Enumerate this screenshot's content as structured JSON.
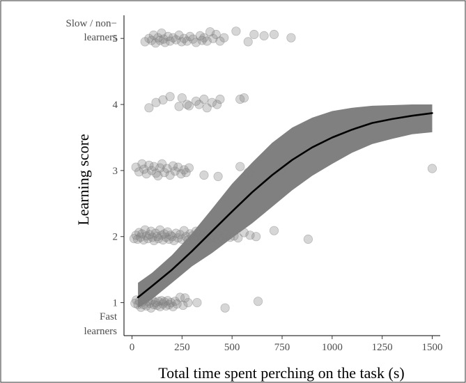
{
  "chart_data": {
    "type": "scatter",
    "xlabel": "Total time spent perching on the task (s)",
    "ylabel": "Learning score",
    "xlim": [
      -40,
      1540
    ],
    "ylim": [
      0.5,
      5.35
    ],
    "x_ticks": [
      0,
      250,
      500,
      750,
      1000,
      1250,
      1500
    ],
    "x_tick_labels": [
      "0",
      "250",
      "500",
      "750",
      "1000",
      "1250",
      "1500"
    ],
    "y_ticks": [
      1,
      2,
      3,
      4,
      5
    ],
    "y_tick_labels": [
      "1",
      "2",
      "3",
      "4",
      "5"
    ],
    "annotations": {
      "top_line1": "Slow / non−",
      "top_line2": "learners",
      "bottom_line1": "Fast",
      "bottom_line2": "learners"
    },
    "grid": false,
    "colors": {
      "points": "#7f7f7f",
      "ribbon": "#808080",
      "fit_line": "#000000"
    },
    "fit_curve": {
      "x": [
        30,
        100,
        200,
        300,
        400,
        500,
        600,
        700,
        800,
        900,
        1000,
        1100,
        1200,
        1300,
        1400,
        1500
      ],
      "y": [
        1.08,
        1.25,
        1.5,
        1.78,
        2.08,
        2.38,
        2.67,
        2.93,
        3.16,
        3.35,
        3.5,
        3.62,
        3.72,
        3.78,
        3.83,
        3.87
      ],
      "lower": [
        0.92,
        1.05,
        1.3,
        1.55,
        1.75,
        1.98,
        2.2,
        2.45,
        2.7,
        2.92,
        3.1,
        3.27,
        3.4,
        3.48,
        3.55,
        3.58
      ],
      "upper": [
        1.3,
        1.45,
        1.72,
        2.05,
        2.42,
        2.8,
        3.12,
        3.42,
        3.65,
        3.8,
        3.9,
        3.95,
        3.98,
        3.99,
        4.0,
        4.0
      ]
    },
    "series": [
      {
        "x": [
          15,
          22,
          30,
          38,
          45,
          52,
          58,
          65,
          72,
          80,
          88,
          95,
          102,
          110,
          118,
          125,
          132,
          140,
          148,
          155,
          162,
          170,
          178,
          185,
          195,
          205,
          215,
          225,
          240,
          255,
          265,
          280,
          325,
          465,
          630
        ],
        "y": [
          0.99,
          1.04,
          0.97,
          1.02,
          0.93,
          1.01,
          0.97,
          1.05,
          0.95,
          1.02,
          0.99,
          0.92,
          1.04,
          0.97,
          1.0,
          0.96,
          1.02,
          0.94,
          1.03,
          0.98,
          1.01,
          0.95,
          1.03,
          0.97,
          1.0,
          0.94,
          1.02,
          0.98,
          1.08,
          0.96,
          1.07,
          1.0,
          1.0,
          0.92,
          1.02
        ]
      },
      {
        "x": [
          10,
          20,
          28,
          35,
          42,
          50,
          58,
          65,
          72,
          80,
          88,
          95,
          102,
          110,
          118,
          125,
          132,
          140,
          148,
          155,
          162,
          170,
          178,
          185,
          192,
          200,
          210,
          220,
          230,
          240,
          250,
          260,
          270,
          280,
          290,
          300,
          310,
          320,
          330,
          340,
          350,
          360,
          370,
          380,
          390,
          400,
          410,
          420,
          430,
          440,
          455,
          470,
          490,
          510,
          530,
          560,
          590,
          620,
          710,
          880
        ],
        "y": [
          1.97,
          2.02,
          1.96,
          2.06,
          1.99,
          2.04,
          1.95,
          2.1,
          2.01,
          1.97,
          2.03,
          2.08,
          1.99,
          1.94,
          2.05,
          2.0,
          1.97,
          2.1,
          2.02,
          1.95,
          2.04,
          1.99,
          2.07,
          1.96,
          2.02,
          2.0,
          1.94,
          2.05,
          1.98,
          2.03,
          1.96,
          2.09,
          2.0,
          1.95,
          2.04,
          2.01,
          1.97,
          2.08,
          1.99,
          2.03,
          1.96,
          2.02,
          1.99,
          2.05,
          1.97,
          2.02,
          1.98,
          2.04,
          1.96,
          2.01,
          1.97,
          2.03,
          1.99,
          2.01,
          1.98,
          2.06,
          2.02,
          2.0,
          2.09,
          1.96
        ]
      },
      {
        "x": [
          20,
          35,
          50,
          60,
          72,
          85,
          98,
          110,
          120,
          130,
          140,
          150,
          162,
          175,
          190,
          205,
          215,
          230,
          245,
          260,
          270,
          285,
          360,
          430,
          540,
          580,
          600,
          740,
          760,
          1500
        ],
        "y": [
          3.05,
          2.98,
          3.1,
          3.02,
          2.95,
          3.08,
          3.0,
          3.06,
          2.96,
          2.92,
          3.04,
          3.1,
          2.97,
          3.03,
          2.93,
          3.07,
          2.99,
          3.05,
          2.95,
          3.01,
          2.97,
          3.04,
          2.93,
          2.91,
          3.06,
          2.97,
          2.92,
          2.99,
          3.09,
          3.03
        ]
      },
      {
        "x": [
          85,
          120,
          155,
          190,
          235,
          250,
          275,
          285,
          320,
          335,
          360,
          375,
          400,
          425,
          440,
          540,
          560
        ],
        "y": [
          3.95,
          4.03,
          4.07,
          4.12,
          3.97,
          4.1,
          4.0,
          3.98,
          4.05,
          4.0,
          4.08,
          3.95,
          4.03,
          4.0,
          4.08,
          4.08,
          4.1
        ]
      },
      {
        "x": [
          65,
          85,
          98,
          108,
          118,
          130,
          140,
          148,
          158,
          165,
          180,
          190,
          205,
          220,
          235,
          248,
          260,
          275,
          290,
          305,
          320,
          340,
          350,
          360,
          375,
          390,
          405,
          420,
          440,
          460,
          520,
          580,
          610,
          660,
          710,
          795
        ],
        "y": [
          4.95,
          5.0,
          4.97,
          5.05,
          4.93,
          5.01,
          4.97,
          5.08,
          4.99,
          4.94,
          5.03,
          4.96,
          5.01,
          4.98,
          5.05,
          4.95,
          5.0,
          4.96,
          5.03,
          4.99,
          4.94,
          5.04,
          4.97,
          5.01,
          4.96,
          5.1,
          5.0,
          5.06,
          4.96,
          5.01,
          5.11,
          4.95,
          5.06,
          5.04,
          5.06,
          5.01
        ]
      }
    ]
  }
}
